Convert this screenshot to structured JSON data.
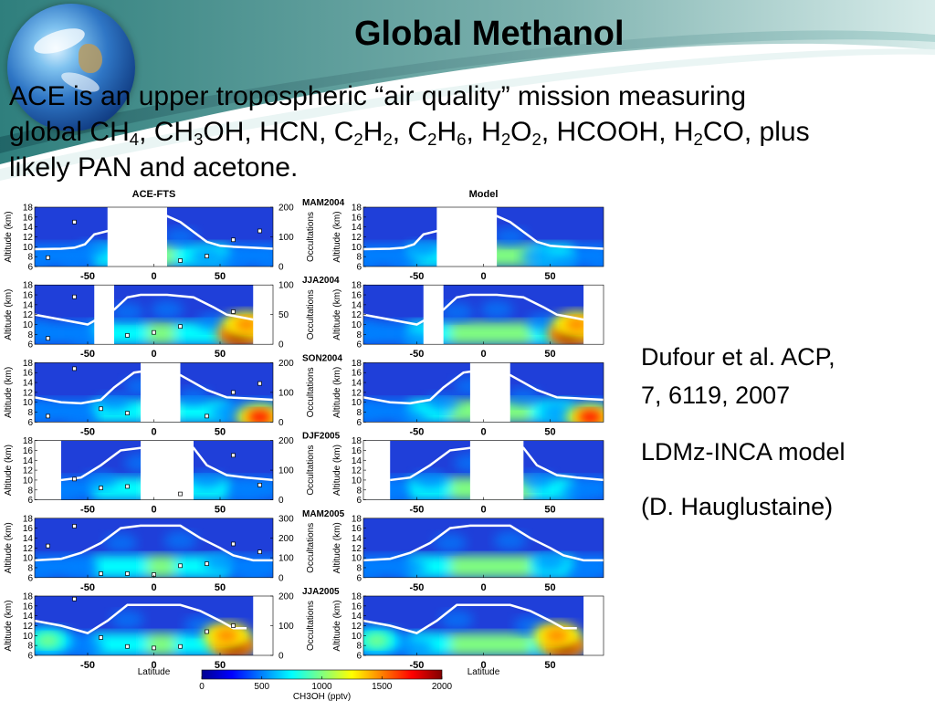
{
  "slide": {
    "title": "Global Methanol",
    "intro_lines": [
      [
        "ACE is an upper tropospheric “air quality” mission measuring"
      ],
      [
        "global CH",
        {
          "sub": "4"
        },
        ", CH",
        {
          "sub": "3"
        },
        "OH, HCN, C",
        {
          "sub": "2"
        },
        "H",
        {
          "sub": "2"
        },
        ", C",
        {
          "sub": "2"
        },
        "H",
        {
          "sub": "6"
        },
        ", H",
        {
          "sub": "2"
        },
        "O",
        {
          "sub": "2"
        },
        ", HCOOH, H",
        {
          "sub": "2"
        },
        "CO, plus"
      ],
      [
        "likely PAN and acetone."
      ]
    ],
    "citation": [
      "Dufour et al. ACP,",
      "7, 6119, 2007",
      "LDMz-INCA model",
      "(D. Hauglustaine)"
    ]
  },
  "chart_data": {
    "type": "heatmap",
    "column_titles": [
      "ACE-FTS",
      "Model"
    ],
    "xlabel": "Latitude",
    "ylabel": "Altitude (km)",
    "y2label": "Occultations",
    "xticks": [
      "-50",
      "0",
      "50"
    ],
    "yticks": [
      "18",
      "16",
      "14",
      "12",
      "10",
      "8",
      "6"
    ],
    "xlim": [
      -90,
      90
    ],
    "ylim": [
      6,
      18
    ],
    "colorbar": {
      "label": "CH3OH (pptv)",
      "ticks": [
        "0",
        "500",
        "1000",
        "1500",
        "2000"
      ],
      "range": [
        0,
        2000
      ],
      "colors": [
        "#00008f",
        "#0000ff",
        "#0080ff",
        "#00ffff",
        "#80ff80",
        "#ffff00",
        "#ff8000",
        "#ff0000",
        "#800000"
      ]
    },
    "panels": [
      {
        "season": "MAM2004",
        "occ_ticks": [
          "200",
          "100",
          "0"
        ],
        "occ_max": 200,
        "ace_gaps": [
          [
            -35,
            10
          ]
        ],
        "model_gaps": [
          [
            -35,
            10
          ]
        ],
        "tropopause": [
          [
            -90,
            9.5
          ],
          [
            -70,
            9.6
          ],
          [
            -60,
            9.8
          ],
          [
            -52,
            10.5
          ],
          [
            -45,
            12.5
          ],
          [
            10,
            16.2
          ],
          [
            20,
            15
          ],
          [
            30,
            13
          ],
          [
            40,
            11
          ],
          [
            50,
            10.2
          ],
          [
            60,
            10
          ],
          [
            75,
            9.8
          ],
          [
            90,
            9.6
          ]
        ],
        "hot_spots": [],
        "occultations": [
          [
            -60,
            150
          ],
          [
            -80,
            30
          ],
          [
            20,
            20
          ],
          [
            40,
            35
          ],
          [
            60,
            90
          ],
          [
            80,
            120
          ]
        ]
      },
      {
        "season": "JJA2004",
        "occ_ticks": [
          "100",
          "50",
          "0"
        ],
        "occ_max": 100,
        "ace_gaps": [
          [
            -45,
            -30
          ],
          [
            75,
            90
          ]
        ],
        "model_gaps": [
          [
            -45,
            -30
          ],
          [
            75,
            90
          ]
        ],
        "tropopause": [
          [
            -90,
            12
          ],
          [
            -70,
            11
          ],
          [
            -50,
            10
          ],
          [
            -30,
            13
          ],
          [
            -20,
            15.5
          ],
          [
            -10,
            16
          ],
          [
            10,
            16
          ],
          [
            30,
            15.5
          ],
          [
            45,
            13.5
          ],
          [
            55,
            12
          ],
          [
            65,
            11.5
          ],
          [
            75,
            11
          ]
        ],
        "hot_spots": [
          {
            "x": 65,
            "y": 8,
            "level": 1.0
          },
          {
            "x": 70,
            "y": 10,
            "level": 0.8
          }
        ],
        "occultations": [
          [
            -60,
            80
          ],
          [
            -80,
            10
          ],
          [
            -20,
            15
          ],
          [
            0,
            20
          ],
          [
            20,
            30
          ],
          [
            60,
            55
          ]
        ]
      },
      {
        "season": "SON2004",
        "occ_ticks": [
          "200",
          "100",
          "0"
        ],
        "occ_max": 200,
        "ace_gaps": [
          [
            -10,
            20
          ]
        ],
        "model_gaps": [
          [
            -10,
            20
          ]
        ],
        "tropopause": [
          [
            -90,
            11
          ],
          [
            -70,
            10
          ],
          [
            -55,
            9.8
          ],
          [
            -40,
            10.5
          ],
          [
            -30,
            13
          ],
          [
            -15,
            16
          ],
          [
            -10,
            16.2
          ],
          [
            20,
            15.5
          ],
          [
            30,
            14
          ],
          [
            40,
            12.5
          ],
          [
            55,
            11
          ],
          [
            70,
            10.8
          ],
          [
            90,
            10.5
          ]
        ],
        "hot_spots": [
          {
            "x": 80,
            "y": 7,
            "level": 0.9
          }
        ],
        "occultations": [
          [
            -60,
            180
          ],
          [
            -80,
            20
          ],
          [
            -40,
            45
          ],
          [
            -20,
            30
          ],
          [
            40,
            20
          ],
          [
            60,
            100
          ],
          [
            80,
            130
          ]
        ]
      },
      {
        "season": "DJF2005",
        "occ_ticks": [
          "200",
          "100",
          "0"
        ],
        "occ_max": 200,
        "ace_gaps": [
          [
            -90,
            -70
          ],
          [
            -10,
            30
          ]
        ],
        "model_gaps": [
          [
            -90,
            -70
          ],
          [
            -10,
            30
          ]
        ],
        "tropopause": [
          [
            -70,
            10
          ],
          [
            -55,
            10.5
          ],
          [
            -40,
            13
          ],
          [
            -25,
            16
          ],
          [
            -10,
            16.5
          ],
          [
            30,
            16.5
          ],
          [
            40,
            13
          ],
          [
            55,
            11
          ],
          [
            70,
            10.5
          ],
          [
            90,
            10
          ]
        ],
        "hot_spots": [],
        "occultations": [
          [
            -60,
            70
          ],
          [
            -40,
            40
          ],
          [
            -20,
            45
          ],
          [
            20,
            20
          ],
          [
            60,
            150
          ],
          [
            80,
            50
          ]
        ]
      },
      {
        "season": "MAM2005",
        "occ_ticks": [
          "300",
          "200",
          "100",
          "0"
        ],
        "occ_max": 300,
        "ace_gaps": [],
        "model_gaps": [],
        "tropopause": [
          [
            -90,
            9.5
          ],
          [
            -70,
            9.8
          ],
          [
            -55,
            11
          ],
          [
            -40,
            13
          ],
          [
            -25,
            16
          ],
          [
            -10,
            16.5
          ],
          [
            20,
            16.5
          ],
          [
            35,
            14
          ],
          [
            50,
            12
          ],
          [
            60,
            10.5
          ],
          [
            75,
            9.5
          ],
          [
            90,
            9.5
          ]
        ],
        "hot_spots": [],
        "occultations": [
          [
            -80,
            160
          ],
          [
            -60,
            260
          ],
          [
            -40,
            20
          ],
          [
            -20,
            20
          ],
          [
            0,
            15
          ],
          [
            20,
            60
          ],
          [
            40,
            70
          ],
          [
            60,
            170
          ],
          [
            80,
            130
          ]
        ]
      },
      {
        "season": "JJA2005",
        "occ_ticks": [
          "200",
          "100",
          "0"
        ],
        "occ_max": 200,
        "ace_gaps": [
          [
            75,
            90
          ]
        ],
        "model_gaps": [
          [
            75,
            90
          ]
        ],
        "tropopause": [
          [
            -90,
            13
          ],
          [
            -70,
            12
          ],
          [
            -50,
            10.5
          ],
          [
            -35,
            13
          ],
          [
            -20,
            16.2
          ],
          [
            20,
            16.2
          ],
          [
            35,
            15
          ],
          [
            50,
            13
          ],
          [
            60,
            11.5
          ],
          [
            70,
            11.5
          ]
        ],
        "hot_spots": [
          {
            "x": 60,
            "y": 8,
            "level": 1.0
          },
          {
            "x": 55,
            "y": 10,
            "level": 0.75
          },
          {
            "x": -80,
            "y": 9,
            "level": 0.45
          }
        ],
        "occultations": [
          [
            -60,
            190
          ],
          [
            -40,
            60
          ],
          [
            -20,
            30
          ],
          [
            0,
            25
          ],
          [
            20,
            30
          ],
          [
            40,
            80
          ],
          [
            60,
            100
          ]
        ]
      }
    ]
  }
}
